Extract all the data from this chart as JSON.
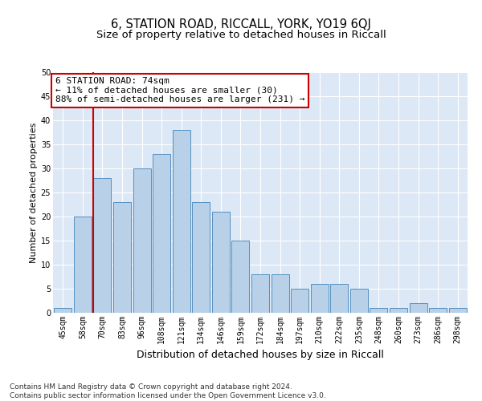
{
  "title_line1": "6, STATION ROAD, RICCALL, YORK, YO19 6QJ",
  "title_line2": "Size of property relative to detached houses in Riccall",
  "xlabel": "Distribution of detached houses by size in Riccall",
  "ylabel": "Number of detached properties",
  "categories": [
    "45sqm",
    "58sqm",
    "70sqm",
    "83sqm",
    "96sqm",
    "108sqm",
    "121sqm",
    "134sqm",
    "146sqm",
    "159sqm",
    "172sqm",
    "184sqm",
    "197sqm",
    "210sqm",
    "222sqm",
    "235sqm",
    "248sqm",
    "260sqm",
    "273sqm",
    "286sqm",
    "298sqm"
  ],
  "values": [
    1,
    20,
    28,
    23,
    30,
    33,
    38,
    23,
    21,
    15,
    8,
    8,
    5,
    6,
    6,
    5,
    1,
    1,
    2,
    1,
    1
  ],
  "bar_color": "#b8d0e8",
  "bar_edge_color": "#5590c0",
  "vline_index": 2,
  "vline_color": "#cc0000",
  "annotation_text": "6 STATION ROAD: 74sqm\n← 11% of detached houses are smaller (30)\n88% of semi-detached houses are larger (231) →",
  "annotation_box_color": "#ffffff",
  "annotation_box_edge_color": "#cc0000",
  "ylim": [
    0,
    50
  ],
  "yticks": [
    0,
    5,
    10,
    15,
    20,
    25,
    30,
    35,
    40,
    45,
    50
  ],
  "plot_bg_color": "#dce8f5",
  "footnote": "Contains HM Land Registry data © Crown copyright and database right 2024.\nContains public sector information licensed under the Open Government Licence v3.0.",
  "title_fontsize": 10.5,
  "subtitle_fontsize": 9.5,
  "xlabel_fontsize": 9,
  "ylabel_fontsize": 8,
  "tick_fontsize": 7,
  "annotation_fontsize": 8,
  "footnote_fontsize": 6.5
}
